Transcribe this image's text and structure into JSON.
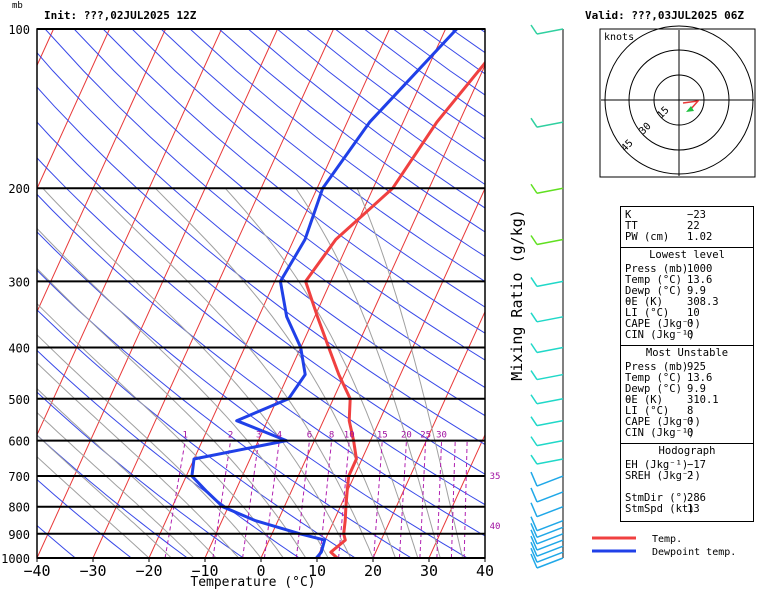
{
  "header": {
    "pressure_unit": "mb",
    "init": "Init: ???,02JUL2025 12Z",
    "valid": "Valid: ???,03JUL2025 06Z"
  },
  "axis_title": "Temperature (°C)",
  "mixing_ratio_title": "Mixing Ratio (g/kg)",
  "hodograph": {
    "units": "knots",
    "ring_labels": [
      "15",
      "30",
      "45"
    ]
  },
  "legend": {
    "temp": "Temp.",
    "dewpoint": "Dewpoint temp.",
    "temp_color": "#f04040",
    "dew_color": "#2040e8"
  },
  "indices": {
    "top": [
      {
        "label": "K",
        "value": "−23"
      },
      {
        "label": "TT",
        "value": "22"
      },
      {
        "label": "PW (cm)",
        "value": "1.02"
      }
    ],
    "sections": [
      {
        "title": "Lowest level",
        "rows": [
          {
            "label": "Press (mb)",
            "value": "1000"
          },
          {
            "label": "Temp (°C)",
            "value": "13.6"
          },
          {
            "label": "Dewp (°C)",
            "value": "9.9"
          },
          {
            "label": "θE (K)",
            "value": "308.3"
          },
          {
            "label": "LI (°C)",
            "value": "10"
          },
          {
            "label": "CAPE (Jkg⁻¹)",
            "value": "0"
          },
          {
            "label": "CIN (Jkg⁻¹)",
            "value": "0"
          }
        ]
      },
      {
        "title": "Most Unstable",
        "rows": [
          {
            "label": "Press (mb)",
            "value": "925"
          },
          {
            "label": "Temp (°C)",
            "value": "13.6"
          },
          {
            "label": "Dewp (°C)",
            "value": "9.9"
          },
          {
            "label": "θE (K)",
            "value": "310.1"
          },
          {
            "label": "LI (°C)",
            "value": "8"
          },
          {
            "label": "CAPE (Jkg⁻¹)",
            "value": "0"
          },
          {
            "label": "CIN (Jkg⁻¹)",
            "value": "0"
          }
        ]
      },
      {
        "title": "Hodograph",
        "rows": [
          {
            "label": "EH (Jkg⁻¹)",
            "value": "−17"
          },
          {
            "label": "SREH (Jkg⁻¹)",
            "value": "2"
          },
          {
            "label": "",
            "value": ""
          },
          {
            "label": "StmDir (°)",
            "value": "286"
          },
          {
            "label": "StmSpd (kt)",
            "value": "13"
          }
        ]
      }
    ]
  },
  "chart_data": {
    "type": "line",
    "xlabel": "Temperature (°C)",
    "ylabel": "mb",
    "x_ticks": [
      "−40",
      "−30",
      "−20",
      "−10",
      "0",
      "10",
      "20",
      "30",
      "40"
    ],
    "y_ticks": [
      "100",
      "200",
      "300",
      "400",
      "500",
      "600",
      "700",
      "800",
      "900",
      "1000"
    ],
    "xlim": [
      -40,
      40
    ],
    "ylim": [
      1000,
      100
    ],
    "y_scale": "log",
    "mixing_ratio_labels": [
      "1",
      "2",
      "3",
      "4",
      "6",
      "8",
      "10",
      "15",
      "20",
      "25",
      "30",
      "35",
      "40"
    ],
    "series": [
      {
        "name": "Temp.",
        "color": "#f04040",
        "points": [
          [
            1000,
            13.6
          ],
          [
            975,
            12
          ],
          [
            925,
            13.6
          ],
          [
            900,
            12.8
          ],
          [
            850,
            12
          ],
          [
            800,
            11
          ],
          [
            750,
            10
          ],
          [
            700,
            9
          ],
          [
            650,
            9
          ],
          [
            600,
            7
          ],
          [
            550,
            4.6
          ],
          [
            500,
            3
          ],
          [
            450,
            -1
          ],
          [
            400,
            -5
          ],
          [
            350,
            -9.5
          ],
          [
            300,
            -14.5
          ],
          [
            250,
            -12.5
          ],
          [
            200,
            -6.5
          ],
          [
            150,
            -4
          ],
          [
            100,
            2
          ]
        ]
      },
      {
        "name": "Dewpoint temp.",
        "color": "#2040e8",
        "points": [
          [
            1000,
            9.9
          ],
          [
            975,
            10.3
          ],
          [
            925,
            9.9
          ],
          [
            900,
            5
          ],
          [
            850,
            -4
          ],
          [
            800,
            -11
          ],
          [
            750,
            -15
          ],
          [
            700,
            -19
          ],
          [
            650,
            -20
          ],
          [
            600,
            -5
          ],
          [
            550,
            -15.5
          ],
          [
            500,
            -8
          ],
          [
            450,
            -7
          ],
          [
            400,
            -10
          ],
          [
            350,
            -15
          ],
          [
            300,
            -19
          ],
          [
            250,
            -18
          ],
          [
            200,
            -19
          ],
          [
            150,
            -16
          ],
          [
            100,
            -8
          ]
        ]
      }
    ],
    "wind_barbs_pressure": [
      100,
      150,
      200,
      250,
      300,
      350,
      400,
      450,
      500,
      550,
      600,
      650,
      700,
      750,
      800,
      850,
      875,
      900,
      925,
      950,
      975,
      1000
    ]
  }
}
